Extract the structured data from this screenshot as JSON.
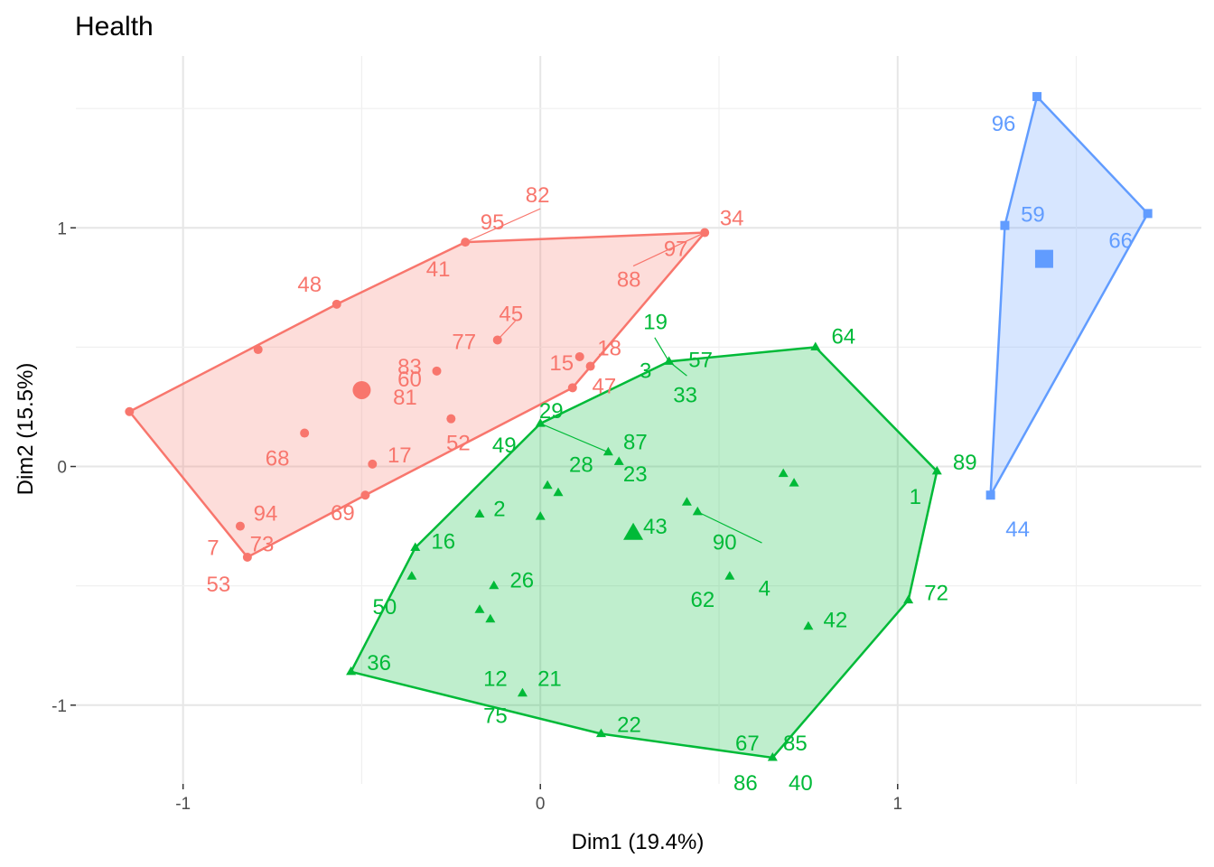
{
  "chart_data": {
    "type": "scatter",
    "title": "Health",
    "xlabel": "Dim1 (19.4%)",
    "ylabel": "Dim2 (15.5%)",
    "xlim": [
      -1.3,
      1.85
    ],
    "ylim": [
      -1.33,
      1.72
    ],
    "x_ticks": [
      -1,
      0,
      1
    ],
    "x_tick_labels": [
      "-1",
      "0",
      "1"
    ],
    "y_ticks": [
      -1,
      0,
      1
    ],
    "y_tick_labels": [
      "-1",
      "0",
      "1"
    ],
    "grid": true,
    "legend": "none",
    "clusters": [
      {
        "color": "#f8766d",
        "marker": "circle",
        "hull": [
          [
            -1.15,
            0.23
          ],
          [
            -0.82,
            -0.38
          ],
          [
            -0.49,
            -0.12
          ],
          [
            0.09,
            0.33
          ],
          [
            0.46,
            0.98
          ],
          [
            -0.21,
            0.94
          ],
          [
            -0.57,
            0.68
          ]
        ],
        "centroid": [
          -0.5,
          0.32
        ],
        "points": [
          {
            "label": "82",
            "x": -0.21,
            "y": 0.94
          },
          {
            "label": "95",
            "x": -0.21,
            "y": 0.94
          },
          {
            "label": "34",
            "x": 0.46,
            "y": 0.98
          },
          {
            "label": "97",
            "x": 0.46,
            "y": 0.98
          },
          {
            "label": "41",
            "x": -0.21,
            "y": 0.94
          },
          {
            "label": "88",
            "x": 0.46,
            "y": 0.98
          },
          {
            "label": "48",
            "x": -0.57,
            "y": 0.68
          },
          {
            "label": "45",
            "x": -0.12,
            "y": 0.53
          },
          {
            "label": "77",
            "x": -0.12,
            "y": 0.53
          },
          {
            "label": "15",
            "x": 0.11,
            "y": 0.46
          },
          {
            "label": "18",
            "x": 0.14,
            "y": 0.42
          },
          {
            "label": "83",
            "x": -0.29,
            "y": 0.4
          },
          {
            "label": "60",
            "x": -0.29,
            "y": 0.4
          },
          {
            "label": "81",
            "x": -0.5,
            "y": 0.32
          },
          {
            "label": "47",
            "x": 0.09,
            "y": 0.33
          },
          {
            "label": "52",
            "x": -0.25,
            "y": 0.2
          },
          {
            "label": "17",
            "x": -0.47,
            "y": 0.01
          },
          {
            "label": "68",
            "x": -0.66,
            "y": 0.14
          },
          {
            "label": "69",
            "x": -0.49,
            "y": -0.12
          },
          {
            "label": "94",
            "x": -0.84,
            "y": -0.25
          },
          {
            "label": "7",
            "x": -0.84,
            "y": -0.25
          },
          {
            "label": "73",
            "x": -0.84,
            "y": -0.25
          },
          {
            "label": "53",
            "x": -0.82,
            "y": -0.38
          }
        ],
        "extra_points": [
          [
            -0.79,
            0.49
          ],
          [
            -0.57,
            0.68
          ],
          [
            -1.15,
            0.23
          ]
        ]
      },
      {
        "color": "#00ba38",
        "marker": "triangle",
        "hull": [
          [
            0.0,
            0.18
          ],
          [
            -0.35,
            -0.34
          ],
          [
            -0.53,
            -0.86
          ],
          [
            0.17,
            -1.12
          ],
          [
            0.65,
            -1.22
          ],
          [
            1.03,
            -0.56
          ],
          [
            1.11,
            -0.02
          ],
          [
            0.77,
            0.5
          ],
          [
            0.36,
            0.44
          ]
        ],
        "centroid": [
          0.26,
          -0.28
        ],
        "points": [
          {
            "label": "64",
            "x": 0.77,
            "y": 0.5
          },
          {
            "label": "19",
            "x": 0.36,
            "y": 0.44
          },
          {
            "label": "57",
            "x": 0.36,
            "y": 0.44
          },
          {
            "label": "3",
            "x": 0.36,
            "y": 0.44
          },
          {
            "label": "33",
            "x": 0.36,
            "y": 0.44
          },
          {
            "label": "29",
            "x": 0.0,
            "y": 0.18
          },
          {
            "label": "49",
            "x": 0.0,
            "y": 0.18
          },
          {
            "label": "87",
            "x": 0.19,
            "y": 0.06
          },
          {
            "label": "28",
            "x": 0.19,
            "y": 0.06
          },
          {
            "label": "23",
            "x": 0.22,
            "y": 0.02
          },
          {
            "label": "89",
            "x": 1.11,
            "y": -0.02
          },
          {
            "label": "1",
            "x": 1.11,
            "y": -0.02
          },
          {
            "label": "43",
            "x": 0.41,
            "y": -0.15
          },
          {
            "label": "90",
            "x": 0.44,
            "y": -0.19
          },
          {
            "label": "4",
            "x": 0.44,
            "y": -0.19
          },
          {
            "label": "2",
            "x": -0.17,
            "y": -0.2
          },
          {
            "label": "16",
            "x": -0.35,
            "y": -0.34
          },
          {
            "label": "26",
            "x": -0.13,
            "y": -0.5
          },
          {
            "label": "62",
            "x": 0.53,
            "y": -0.46
          },
          {
            "label": "72",
            "x": 1.03,
            "y": -0.56
          },
          {
            "label": "50",
            "x": -0.36,
            "y": -0.46
          },
          {
            "label": "42",
            "x": 0.75,
            "y": -0.67
          },
          {
            "label": "36",
            "x": -0.53,
            "y": -0.86
          },
          {
            "label": "12",
            "x": -0.05,
            "y": -0.95
          },
          {
            "label": "21",
            "x": -0.05,
            "y": -0.95
          },
          {
            "label": "75",
            "x": -0.05,
            "y": -0.95
          },
          {
            "label": "22",
            "x": 0.17,
            "y": -1.12
          },
          {
            "label": "67",
            "x": 0.65,
            "y": -1.22
          },
          {
            "label": "85",
            "x": 0.65,
            "y": -1.22
          },
          {
            "label": "86",
            "x": 0.65,
            "y": -1.22
          },
          {
            "label": "40",
            "x": 0.65,
            "y": -1.22
          }
        ],
        "extra_points": [
          [
            0.68,
            -0.03
          ],
          [
            0.71,
            -0.07
          ],
          [
            0.02,
            -0.08
          ],
          [
            0.05,
            -0.11
          ],
          [
            0.0,
            -0.21
          ],
          [
            -0.17,
            -0.6
          ],
          [
            -0.14,
            -0.64
          ]
        ]
      },
      {
        "color": "#619cff",
        "marker": "square",
        "hull": [
          [
            1.39,
            1.55
          ],
          [
            1.7,
            1.06
          ],
          [
            1.26,
            -0.12
          ],
          [
            1.3,
            1.01
          ]
        ],
        "centroid": [
          1.41,
          0.87
        ],
        "points": [
          {
            "label": "96",
            "x": 1.39,
            "y": 1.55
          },
          {
            "label": "59",
            "x": 1.3,
            "y": 1.01
          },
          {
            "label": "66",
            "x": 1.7,
            "y": 1.06
          },
          {
            "label": "44",
            "x": 1.26,
            "y": -0.12
          }
        ],
        "extra_points": []
      }
    ]
  }
}
